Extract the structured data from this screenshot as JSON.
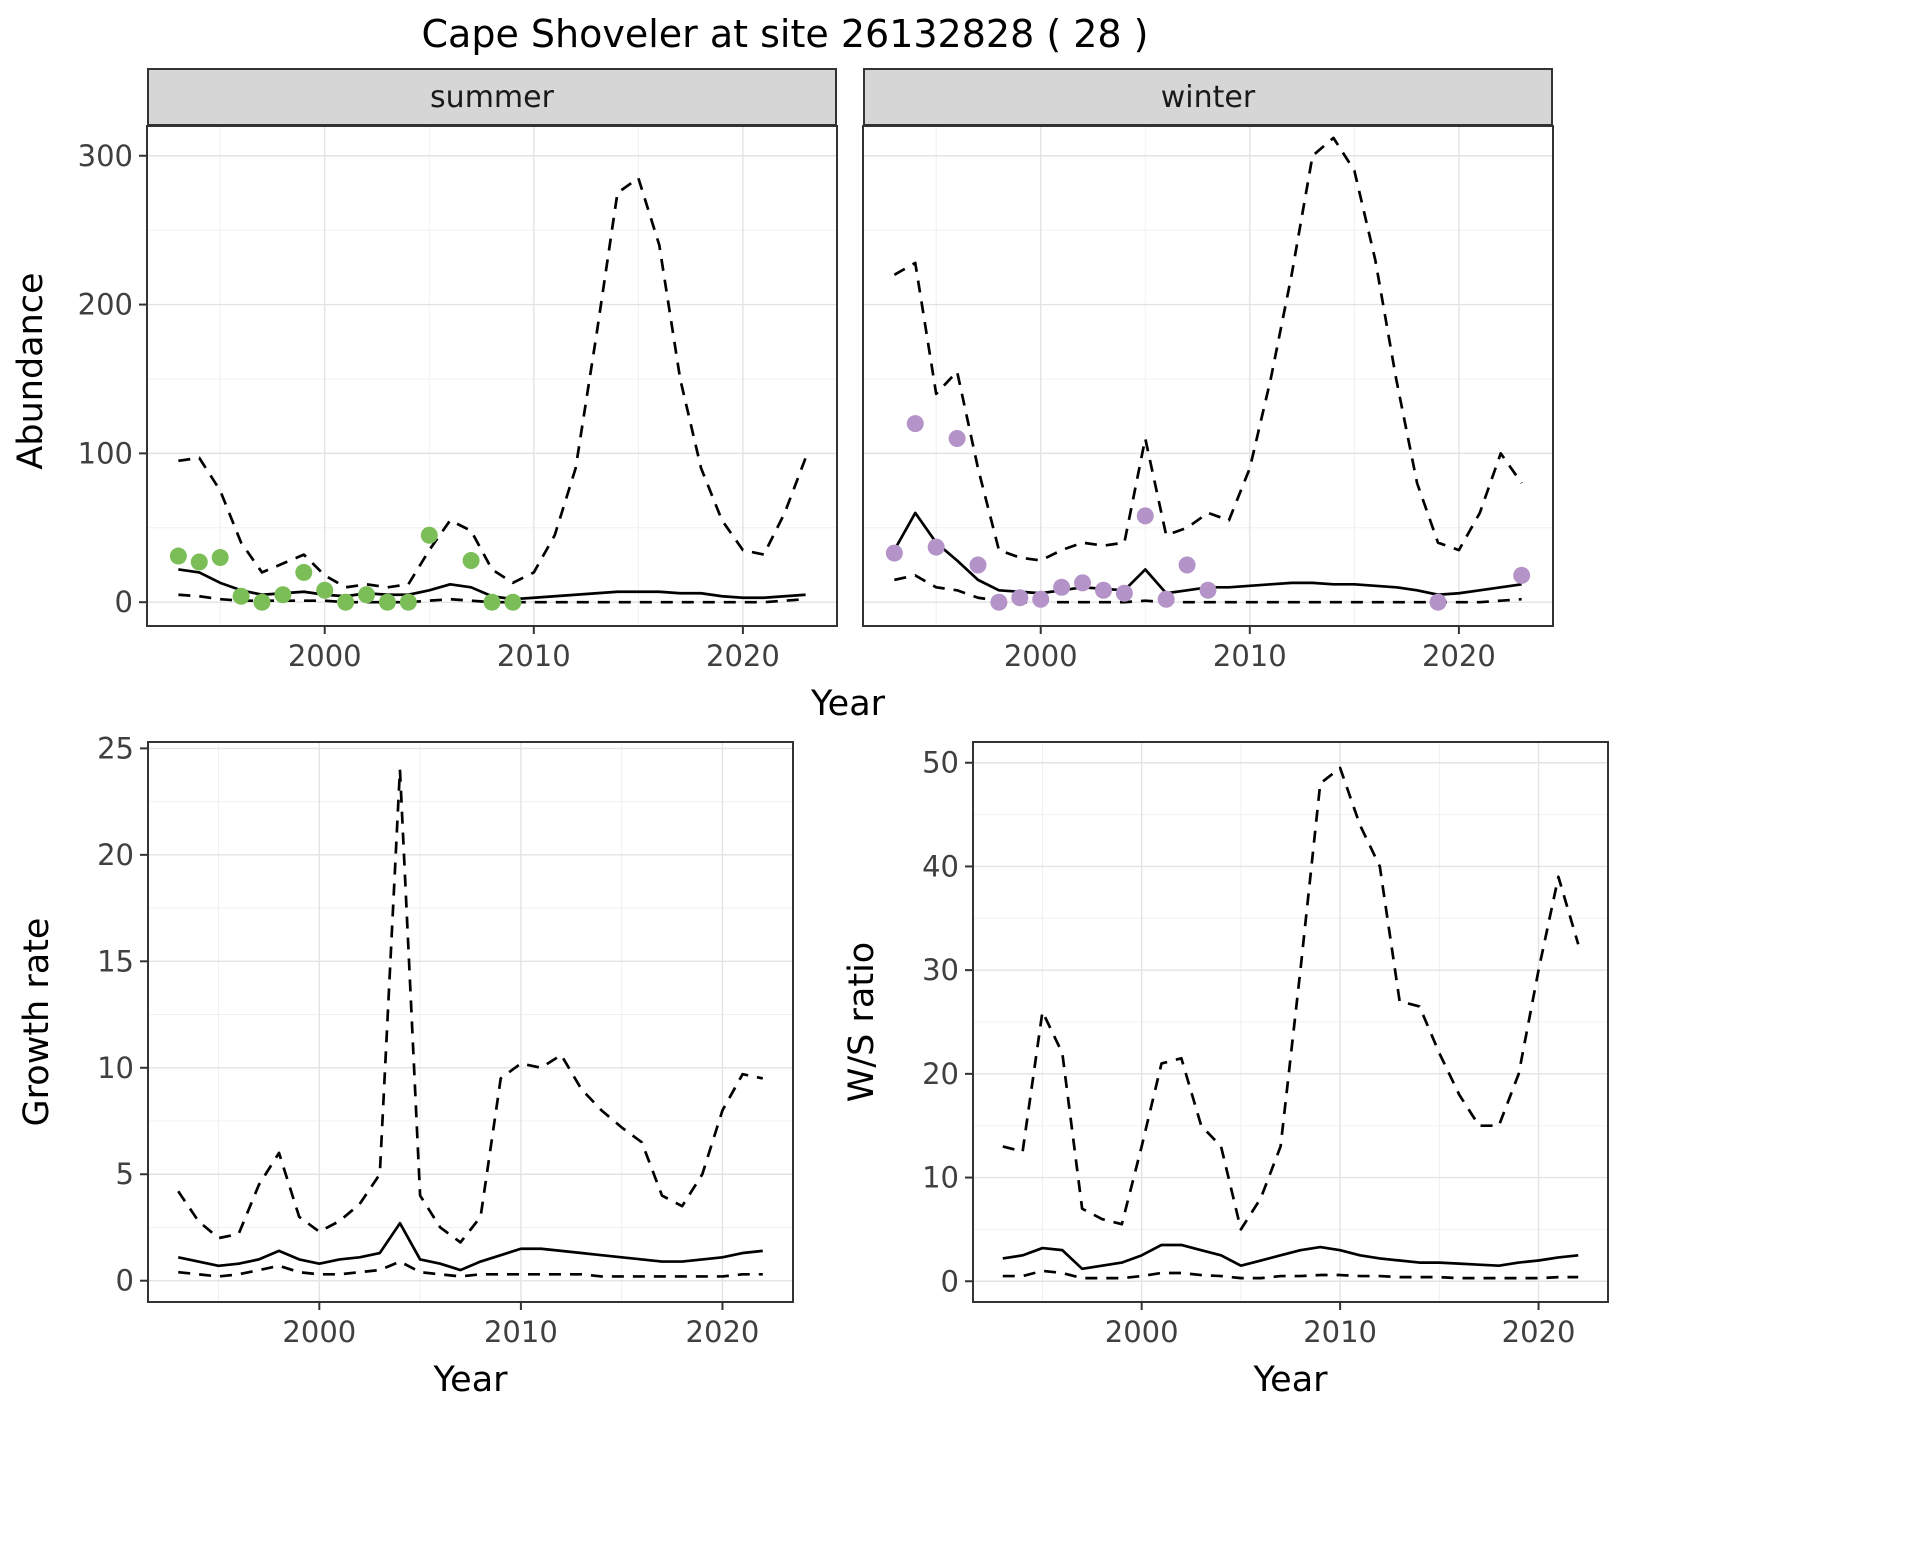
{
  "title": "Cape Shoveler at site 26132828 ( 28 )",
  "colors": {
    "summer_points": "#7bbd57",
    "winter_points": "#b493c8",
    "line": "#000000",
    "strip_bg": "#d6d6d6",
    "strip_text": "#1a1a1a",
    "grid_major": "#e3e3e3",
    "grid_minor": "#f0f0f0",
    "border": "#333333",
    "tick_text": "#404040"
  },
  "chart_data": [
    {
      "type": "line",
      "xlabel": "Year",
      "ylabel": "Abundance",
      "xlim": [
        1991.5,
        2024.5
      ],
      "ylim": [
        -16,
        320
      ],
      "xticks": [
        2000,
        2010,
        2020
      ],
      "yticks": [
        0,
        100,
        200,
        300
      ],
      "grid": true,
      "legend": "none",
      "panels": [
        {
          "facet": "summer",
          "x": [
            1993,
            1994,
            1995,
            1996,
            1997,
            1998,
            1999,
            2000,
            2001,
            2002,
            2003,
            2004,
            2005,
            2006,
            2007,
            2008,
            2009,
            2010,
            2011,
            2012,
            2013,
            2014,
            2015,
            2016,
            2017,
            2018,
            2019,
            2020,
            2021,
            2022,
            2023
          ],
          "series": [
            {
              "name": "upper-credible",
              "style": "dashed",
              "y": [
                95,
                97,
                75,
                40,
                20,
                26,
                32,
                18,
                10,
                12,
                10,
                12,
                35,
                55,
                48,
                22,
                13,
                20,
                45,
                90,
                180,
                275,
                285,
                240,
                150,
                90,
                55,
                35,
                32,
                60,
                97
              ]
            },
            {
              "name": "median-fit",
              "style": "solid",
              "y": [
                22,
                20,
                13,
                8,
                5,
                6,
                7,
                5,
                4,
                6,
                5,
                5,
                8,
                12,
                10,
                4,
                2,
                3,
                4,
                5,
                6,
                7,
                7,
                7,
                6,
                6,
                4,
                3,
                3,
                4,
                5
              ]
            },
            {
              "name": "lower-credible",
              "style": "dashed",
              "y": [
                5,
                4,
                2,
                1,
                1,
                1,
                1,
                1,
                0,
                0,
                0,
                0,
                1,
                2,
                1,
                0,
                0,
                0,
                0,
                0,
                0,
                0,
                0,
                0,
                0,
                0,
                0,
                0,
                0,
                1,
                2
              ]
            }
          ],
          "points": {
            "name": "observed-counts-summer",
            "color": "#7bbd57",
            "x": [
              1993,
              1994,
              1995,
              1996,
              1997,
              1998,
              1999,
              2000,
              2001,
              2002,
              2003,
              2004,
              2005,
              2007,
              2008,
              2009
            ],
            "y": [
              31,
              27,
              30,
              4,
              0,
              5,
              20,
              8,
              0,
              5,
              0,
              0,
              45,
              28,
              0,
              0
            ]
          }
        },
        {
          "facet": "winter",
          "x": [
            1993,
            1994,
            1995,
            1996,
            1997,
            1998,
            1999,
            2000,
            2001,
            2002,
            2003,
            2004,
            2005,
            2006,
            2007,
            2008,
            2009,
            2010,
            2011,
            2012,
            2013,
            2014,
            2015,
            2016,
            2017,
            2018,
            2019,
            2020,
            2021,
            2022,
            2023
          ],
          "series": [
            {
              "name": "upper-credible",
              "style": "dashed",
              "y": [
                220,
                228,
                140,
                155,
                90,
                35,
                30,
                28,
                35,
                40,
                38,
                40,
                110,
                45,
                50,
                60,
                55,
                90,
                150,
                220,
                300,
                312,
                290,
                230,
                150,
                80,
                40,
                35,
                60,
                100,
                80
              ]
            },
            {
              "name": "median-fit",
              "style": "solid",
              "y": [
                35,
                60,
                40,
                28,
                15,
                8,
                7,
                6,
                8,
                10,
                9,
                8,
                22,
                6,
                8,
                10,
                10,
                11,
                12,
                13,
                13,
                12,
                12,
                11,
                10,
                8,
                5,
                6,
                8,
                10,
                12
              ]
            },
            {
              "name": "lower-credible",
              "style": "dashed",
              "y": [
                15,
                18,
                10,
                8,
                3,
                1,
                0,
                0,
                0,
                0,
                0,
                0,
                1,
                0,
                0,
                0,
                0,
                0,
                0,
                0,
                0,
                0,
                0,
                0,
                0,
                0,
                0,
                0,
                0,
                1,
                2
              ]
            }
          ],
          "points": {
            "name": "observed-counts-winter",
            "color": "#b493c8",
            "x": [
              1993,
              1994,
              1995,
              1996,
              1997,
              1998,
              1999,
              2000,
              2001,
              2002,
              2003,
              2004,
              2005,
              2006,
              2007,
              2008,
              2019,
              2023
            ],
            "y": [
              33,
              120,
              37,
              110,
              25,
              0,
              3,
              2,
              10,
              13,
              8,
              6,
              58,
              2,
              25,
              8,
              0,
              18
            ]
          }
        }
      ]
    },
    {
      "type": "line",
      "xlabel": "Year",
      "ylabel": "Growth rate",
      "xlim": [
        1991.5,
        2023.5
      ],
      "ylim": [
        -1,
        25.3
      ],
      "xticks": [
        2000,
        2010,
        2020
      ],
      "yticks": [
        0,
        5,
        10,
        15,
        20,
        25
      ],
      "grid": true,
      "legend": "none",
      "panels": [
        {
          "facet": "",
          "x": [
            1993,
            1994,
            1995,
            1996,
            1997,
            1998,
            1999,
            2000,
            2001,
            2002,
            2003,
            2004,
            2005,
            2006,
            2007,
            2008,
            2009,
            2010,
            2011,
            2012,
            2013,
            2014,
            2015,
            2016,
            2017,
            2018,
            2019,
            2020,
            2021,
            2022
          ],
          "series": [
            {
              "name": "upper-credible",
              "style": "dashed",
              "y": [
                4.2,
                2.8,
                2.0,
                2.2,
                4.5,
                6.0,
                3.0,
                2.3,
                2.8,
                3.6,
                5.0,
                24.0,
                4.0,
                2.5,
                1.8,
                3.0,
                9.5,
                10.2,
                10.0,
                10.6,
                9.0,
                8.0,
                7.2,
                6.5,
                4.0,
                3.5,
                5.0,
                8.0,
                9.7,
                9.5
              ]
            },
            {
              "name": "median-fit",
              "style": "solid",
              "y": [
                1.1,
                0.9,
                0.7,
                0.8,
                1.0,
                1.4,
                1.0,
                0.8,
                1.0,
                1.1,
                1.3,
                2.7,
                1.0,
                0.8,
                0.5,
                0.9,
                1.2,
                1.5,
                1.5,
                1.4,
                1.3,
                1.2,
                1.1,
                1.0,
                0.9,
                0.9,
                1.0,
                1.1,
                1.3,
                1.4
              ]
            },
            {
              "name": "lower-credible",
              "style": "dashed",
              "y": [
                0.4,
                0.3,
                0.2,
                0.3,
                0.5,
                0.7,
                0.4,
                0.3,
                0.3,
                0.4,
                0.5,
                0.9,
                0.4,
                0.3,
                0.2,
                0.3,
                0.3,
                0.3,
                0.3,
                0.3,
                0.3,
                0.2,
                0.2,
                0.2,
                0.2,
                0.2,
                0.2,
                0.2,
                0.3,
                0.3
              ]
            }
          ]
        }
      ]
    },
    {
      "type": "line",
      "xlabel": "Year",
      "ylabel": "W/S ratio",
      "xlim": [
        1991.5,
        2023.5
      ],
      "ylim": [
        -2,
        52
      ],
      "xticks": [
        2000,
        2010,
        2020
      ],
      "yticks": [
        0,
        10,
        20,
        30,
        40,
        50
      ],
      "grid": true,
      "legend": "none",
      "panels": [
        {
          "facet": "",
          "x": [
            1993,
            1994,
            1995,
            1996,
            1997,
            1998,
            1999,
            2000,
            2001,
            2002,
            2003,
            2004,
            2005,
            2006,
            2007,
            2008,
            2009,
            2010,
            2011,
            2012,
            2013,
            2014,
            2015,
            2016,
            2017,
            2018,
            2019,
            2020,
            2021,
            2022
          ],
          "series": [
            {
              "name": "upper-credible",
              "style": "dashed",
              "y": [
                13,
                12.5,
                26,
                22,
                7,
                6,
                5.5,
                13,
                21,
                21.5,
                15,
                13,
                5,
                8,
                13,
                30,
                48,
                49.5,
                44,
                40,
                27,
                26.5,
                22,
                18,
                15,
                15,
                20,
                30,
                39,
                32.5
              ]
            },
            {
              "name": "median-fit",
              "style": "solid",
              "y": [
                2.2,
                2.5,
                3.2,
                3.0,
                1.2,
                1.5,
                1.8,
                2.5,
                3.5,
                3.5,
                3.0,
                2.5,
                1.5,
                2.0,
                2.5,
                3.0,
                3.3,
                3.0,
                2.5,
                2.2,
                2.0,
                1.8,
                1.8,
                1.7,
                1.6,
                1.5,
                1.8,
                2.0,
                2.3,
                2.5
              ]
            },
            {
              "name": "lower-credible",
              "style": "dashed",
              "y": [
                0.5,
                0.5,
                1.0,
                0.8,
                0.3,
                0.3,
                0.3,
                0.5,
                0.8,
                0.8,
                0.6,
                0.5,
                0.3,
                0.3,
                0.5,
                0.5,
                0.6,
                0.6,
                0.5,
                0.5,
                0.4,
                0.4,
                0.4,
                0.3,
                0.3,
                0.3,
                0.3,
                0.3,
                0.4,
                0.4
              ]
            }
          ]
        }
      ]
    }
  ]
}
